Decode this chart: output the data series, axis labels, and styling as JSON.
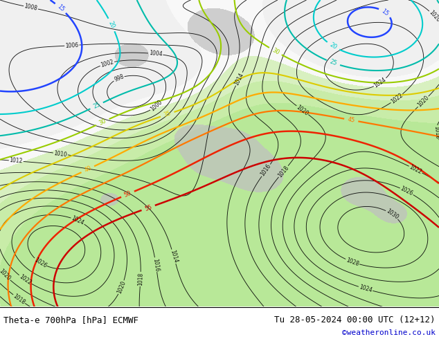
{
  "title_left": "Theta-e 700hPa [hPa] ECMWF",
  "title_right": "Tu 28-05-2024 00:00 UTC (12+12)",
  "credit": "©weatheronline.co.uk",
  "bg_color": "#ffffff",
  "map_bg": "#ffffff",
  "figsize": [
    6.34,
    4.9
  ],
  "dpi": 100,
  "label_color_left": "#000000",
  "label_color_right": "#000000",
  "credit_color": "#0000cc",
  "theta_colors": {
    "15": "#0055ff",
    "20": "#00cccc",
    "25": "#00bbbb",
    "30": "#88cc00",
    "35": "#cccc00",
    "40": "#ffaa00",
    "45": "#ff6600",
    "50": "#ff2200",
    "55": "#cc0000"
  }
}
